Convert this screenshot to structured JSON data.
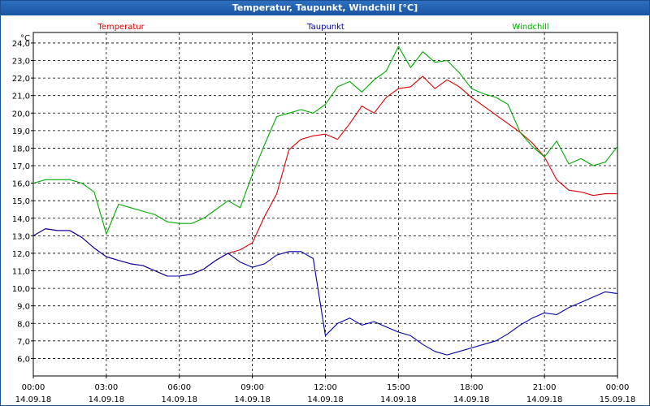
{
  "window": {
    "title": "Temperatur, Taupunkt, Windchill [°C]"
  },
  "chart_data": {
    "type": "line",
    "title": "Temperatur, Taupunkt, Windchill [°C]",
    "unit_label": "°C",
    "ylim": [
      5.0,
      24.6
    ],
    "y_ticks": [
      "6,0",
      "7,0",
      "8,0",
      "9,0",
      "10,0",
      "11,0",
      "12,0",
      "13,0",
      "14,0",
      "15,0",
      "16,0",
      "17,0",
      "18,0",
      "19,0",
      "20,0",
      "21,0",
      "22,0",
      "23,0",
      "24,0"
    ],
    "x_tick_times": [
      "00:00",
      "03:00",
      "06:00",
      "09:00",
      "12:00",
      "15:00",
      "18:00",
      "21:00",
      "00:00"
    ],
    "x_tick_dates": [
      "14.09.18",
      "14.09.18",
      "14.09.18",
      "14.09.18",
      "14.09.18",
      "14.09.18",
      "14.09.18",
      "14.09.18",
      "15.09.18"
    ],
    "grid": true,
    "legend_position": "top",
    "x_hours": [
      0,
      0.5,
      1,
      1.5,
      2,
      2.5,
      3,
      3.5,
      4,
      4.5,
      5,
      5.5,
      6,
      6.5,
      7,
      7.5,
      8,
      8.5,
      9,
      9.5,
      10,
      10.5,
      11,
      11.5,
      12,
      12.5,
      13,
      13.5,
      14,
      14.5,
      15,
      15.5,
      16,
      16.5,
      17,
      17.5,
      18,
      18.5,
      19,
      19.5,
      20,
      20.5,
      21,
      21.5,
      22,
      22.5,
      23,
      23.5,
      24
    ],
    "series": [
      {
        "name": "Temperatur",
        "color": "#dd0000",
        "values": [
          13.0,
          13.4,
          13.3,
          13.3,
          12.9,
          12.3,
          11.8,
          11.6,
          11.4,
          11.3,
          11.0,
          10.7,
          10.7,
          10.8,
          11.1,
          11.6,
          12.0,
          12.2,
          12.6,
          14.1,
          15.4,
          17.9,
          18.5,
          18.7,
          18.8,
          18.5,
          19.4,
          20.4,
          20.0,
          20.9,
          21.4,
          21.5,
          22.1,
          21.4,
          21.9,
          21.5,
          20.9,
          20.4,
          19.9,
          19.4,
          18.9,
          18.3,
          17.5,
          16.2,
          15.6,
          15.5,
          15.3,
          15.4,
          15.4
        ]
      },
      {
        "name": "Taupunkt",
        "color": "#0000aa",
        "values": [
          13.0,
          13.4,
          13.3,
          13.3,
          12.9,
          12.3,
          11.8,
          11.6,
          11.4,
          11.3,
          11.0,
          10.7,
          10.7,
          10.8,
          11.1,
          11.6,
          12.0,
          11.5,
          11.2,
          11.4,
          11.9,
          12.1,
          12.1,
          11.7,
          7.3,
          8.0,
          8.3,
          7.9,
          8.1,
          7.8,
          7.5,
          7.3,
          6.8,
          6.4,
          6.2,
          6.4,
          6.6,
          6.8,
          7.0,
          7.4,
          7.9,
          8.3,
          8.6,
          8.5,
          8.9,
          9.2,
          9.5,
          9.8,
          9.7
        ]
      },
      {
        "name": "Windchill",
        "color": "#00aa00",
        "values": [
          16.0,
          16.2,
          16.2,
          16.2,
          16.0,
          15.5,
          13.1,
          14.8,
          14.6,
          14.4,
          14.2,
          13.8,
          13.7,
          13.7,
          14.0,
          14.5,
          15.0,
          14.6,
          16.5,
          18.2,
          19.8,
          20.0,
          20.2,
          20.0,
          20.5,
          21.5,
          21.8,
          21.2,
          21.9,
          22.4,
          23.8,
          22.6,
          23.5,
          22.9,
          23.0,
          22.3,
          21.4,
          21.1,
          20.9,
          20.5,
          18.9,
          18.1,
          17.5,
          18.4,
          17.1,
          17.4,
          17.0,
          17.2,
          18.1
        ]
      }
    ]
  }
}
